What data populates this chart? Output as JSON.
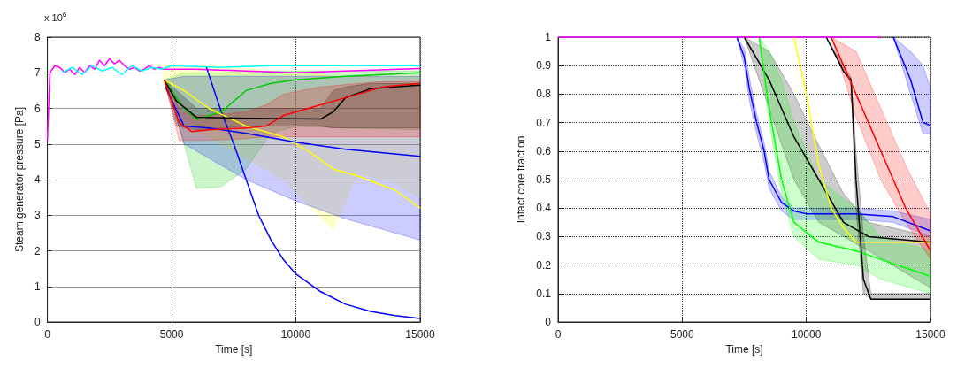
{
  "chart_data": [
    {
      "type": "line",
      "xlabel": "Time [s]",
      "ylabel": "Steam generator pressure [Pa]",
      "annotations": [
        "x 10$^{6}$"
      ],
      "xlim": [
        0,
        15000
      ],
      "xticks": [
        0,
        5000,
        10000,
        15000
      ],
      "ylim": [
        0,
        8
      ],
      "yticks": [
        0,
        1,
        2,
        3,
        4,
        5,
        6,
        7,
        8
      ],
      "grid": true,
      "marker": "none",
      "line_style": "solid",
      "series": [
        {
          "color": "#ff00ff",
          "x": [
            0,
            100,
            300,
            500,
            700,
            900,
            1100,
            1300,
            1500,
            1700,
            1900,
            2100,
            2300,
            2500,
            2700,
            2900,
            3100,
            3300,
            3500,
            3700,
            3900,
            4100,
            4300,
            4500,
            4700,
            6000,
            8000,
            10000,
            12000,
            15000
          ],
          "values": [
            5.1,
            7.0,
            7.2,
            7.15,
            7.0,
            7.1,
            6.95,
            7.15,
            7.0,
            7.2,
            7.1,
            7.35,
            7.2,
            7.4,
            7.25,
            7.35,
            7.2,
            7.1,
            7.15,
            7.05,
            7.1,
            7.2,
            7.1,
            7.15,
            7.1,
            7.1,
            7.05,
            7.0,
            7.05,
            7.12
          ]
        },
        {
          "color": "#00ffff",
          "x": [
            600,
            1000,
            1400,
            1800,
            2200,
            2600,
            3000,
            3400,
            3800,
            4200,
            4600,
            5000,
            7000,
            9000,
            11000,
            13000,
            15000
          ],
          "values": [
            7.0,
            7.15,
            6.95,
            7.2,
            7.05,
            7.15,
            6.95,
            7.2,
            7.05,
            7.15,
            7.1,
            7.2,
            7.15,
            7.2,
            7.2,
            7.2,
            7.2
          ]
        },
        {
          "color": "#0000ff",
          "x": [
            6400,
            7000,
            7500,
            8000,
            8500,
            9000,
            9500,
            10000,
            11000,
            12000,
            13000,
            14000,
            15000
          ],
          "values": [
            7.15,
            5.9,
            5.0,
            4.0,
            3.0,
            2.3,
            1.75,
            1.35,
            0.85,
            0.5,
            0.3,
            0.18,
            0.1
          ]
        },
        {
          "color": "#00cc00",
          "x": [
            4700,
            5500,
            6000,
            7000,
            8000,
            9000,
            10000,
            12000,
            15000
          ],
          "values": [
            6.8,
            6.0,
            5.7,
            5.9,
            6.5,
            6.7,
            6.8,
            6.9,
            7.0
          ],
          "lower": [
            6.8,
            5.0,
            3.75,
            3.8,
            4.3,
            5.3,
            5.5,
            5.45,
            5.4
          ],
          "upper": [
            6.8,
            7.0,
            7.0,
            7.0,
            7.05,
            7.05,
            7.05,
            7.05,
            7.05
          ]
        },
        {
          "color": "#ffff00",
          "x": [
            4700,
            5500,
            6500,
            8000,
            9500,
            10500,
            11500,
            12500,
            14000,
            15000
          ],
          "values": [
            6.8,
            6.5,
            6.0,
            5.5,
            5.2,
            4.8,
            4.3,
            4.1,
            3.7,
            3.2
          ],
          "lower": [
            6.5,
            5.9,
            5.2,
            4.6,
            4.0,
            3.3,
            2.6,
            4.2,
            3.9,
            3.5
          ],
          "upper": [
            7.2,
            7.2,
            7.2,
            7.1,
            7.0,
            7.0,
            6.9,
            6.9,
            6.9,
            6.9
          ]
        },
        {
          "color": "#0000ff",
          "x": [
            4750,
            5500,
            6500,
            8000,
            10000,
            12000,
            15000
          ],
          "values": [
            6.6,
            5.5,
            5.45,
            5.3,
            5.05,
            4.85,
            4.65
          ],
          "lower": [
            6.8,
            5.0,
            4.6,
            4.0,
            3.4,
            2.9,
            2.3
          ],
          "upper": [
            6.8,
            6.9,
            6.9,
            6.9,
            6.9,
            6.9,
            6.9
          ]
        },
        {
          "color": "#000000",
          "x": [
            4700,
            5200,
            6000,
            8000,
            11000,
            11500,
            12000,
            13000,
            15000
          ],
          "values": [
            6.8,
            6.2,
            5.75,
            5.72,
            5.7,
            5.9,
            6.3,
            6.55,
            6.65
          ],
          "lower": [
            6.8,
            5.5,
            5.4,
            5.5,
            5.5,
            5.45,
            5.45,
            5.45,
            5.45
          ],
          "upper": [
            6.8,
            6.5,
            6.0,
            6.0,
            6.0,
            6.5,
            6.6,
            6.7,
            6.7
          ]
        },
        {
          "color": "#ff0000",
          "x": [
            4700,
            5300,
            5800,
            6500,
            8000,
            8800,
            9500,
            11000,
            12500,
            13500,
            15000
          ],
          "values": [
            6.8,
            5.6,
            5.35,
            5.4,
            5.45,
            5.5,
            5.8,
            6.1,
            6.4,
            6.6,
            6.7
          ],
          "lower": [
            6.8,
            5.1,
            5.1,
            5.1,
            5.15,
            5.2,
            5.2,
            5.2,
            5.2,
            5.2,
            5.2
          ],
          "upper": [
            6.8,
            6.0,
            5.8,
            5.8,
            5.9,
            6.1,
            6.4,
            6.6,
            6.7,
            6.75,
            6.75
          ]
        }
      ]
    },
    {
      "type": "line",
      "xlabel": "Time [s]",
      "ylabel": "Intact core fraction",
      "xlim": [
        0,
        15000
      ],
      "xticks": [
        0,
        5000,
        10000,
        15000
      ],
      "ylim": [
        0,
        1
      ],
      "yticks": [
        0,
        0.1,
        0.2,
        0.3,
        0.4,
        0.5,
        0.6,
        0.7,
        0.8,
        0.9,
        1
      ],
      "grid": true,
      "marker": "none",
      "line_style": "solid",
      "series": [
        {
          "color": "#0000ff",
          "x": [
            7200,
            7500,
            7700,
            8000,
            8300,
            8500,
            9000,
            9500,
            10000,
            12000,
            13500,
            15000
          ],
          "values": [
            1,
            0.93,
            0.82,
            0.7,
            0.6,
            0.5,
            0.42,
            0.39,
            0.38,
            0.38,
            0.37,
            0.32
          ],
          "lower": [
            1,
            0.9,
            0.78,
            0.66,
            0.56,
            0.47,
            0.39,
            0.36,
            0.36,
            0.36,
            0.35,
            0.3
          ],
          "upper": [
            1,
            0.96,
            0.86,
            0.73,
            0.63,
            0.53,
            0.44,
            0.4,
            0.4,
            0.4,
            0.39,
            0.36
          ]
        },
        {
          "color": "#000000",
          "x": [
            7500,
            8500,
            9500,
            10500,
            11500,
            12500,
            15000
          ],
          "values": [
            1,
            0.85,
            0.65,
            0.5,
            0.35,
            0.3,
            0.28
          ],
          "lower": [
            1,
            0.75,
            0.5,
            0.35,
            0.3,
            0.25,
            0.12
          ],
          "upper": [
            1,
            0.95,
            0.8,
            0.62,
            0.45,
            0.35,
            0.3
          ]
        },
        {
          "color": "#00ff00",
          "x": [
            8100,
            8500,
            9000,
            9500,
            10500,
            12000,
            13000,
            15000
          ],
          "values": [
            1,
            0.75,
            0.5,
            0.35,
            0.28,
            0.25,
            0.22,
            0.16
          ],
          "lower": [
            1,
            0.7,
            0.45,
            0.3,
            0.22,
            0.2,
            0.15,
            0.1
          ],
          "upper": [
            1,
            0.95,
            0.85,
            0.7,
            0.5,
            0.4,
            0.3,
            0.25
          ]
        },
        {
          "color": "#ffff00",
          "x": [
            9500,
            10000,
            10500,
            11000,
            11500,
            12000,
            15000
          ],
          "values": [
            1,
            0.8,
            0.55,
            0.4,
            0.33,
            0.28,
            0.28
          ]
        },
        {
          "color": "#000000",
          "x": [
            10800,
            11500,
            11800,
            12000,
            12300,
            12600,
            15000
          ],
          "values": [
            1,
            0.88,
            0.85,
            0.5,
            0.15,
            0.08,
            0.08
          ],
          "lower": [
            1,
            0.88,
            0.84,
            0.4,
            0.1,
            0.08,
            0.08
          ],
          "upper": [
            1,
            0.9,
            0.86,
            0.6,
            0.3,
            0.1,
            0.1
          ]
        },
        {
          "color": "#ff0000",
          "x": [
            11000,
            12000,
            13000,
            14000,
            15000
          ],
          "values": [
            1,
            0.8,
            0.6,
            0.4,
            0.25
          ],
          "lower": [
            1,
            0.72,
            0.5,
            0.35,
            0.22
          ],
          "upper": [
            1,
            0.95,
            0.75,
            0.55,
            0.38
          ]
        },
        {
          "color": "#0000ff",
          "x": [
            13500,
            14200,
            14700,
            15000
          ],
          "values": [
            1,
            0.85,
            0.7,
            0.69
          ],
          "lower": [
            1,
            0.8,
            0.66,
            0.66
          ],
          "upper": [
            1,
            0.95,
            0.9,
            0.82
          ]
        },
        {
          "color": "#ff00ff",
          "x": [
            0,
            13000
          ],
          "values": [
            1,
            1
          ]
        }
      ]
    }
  ]
}
